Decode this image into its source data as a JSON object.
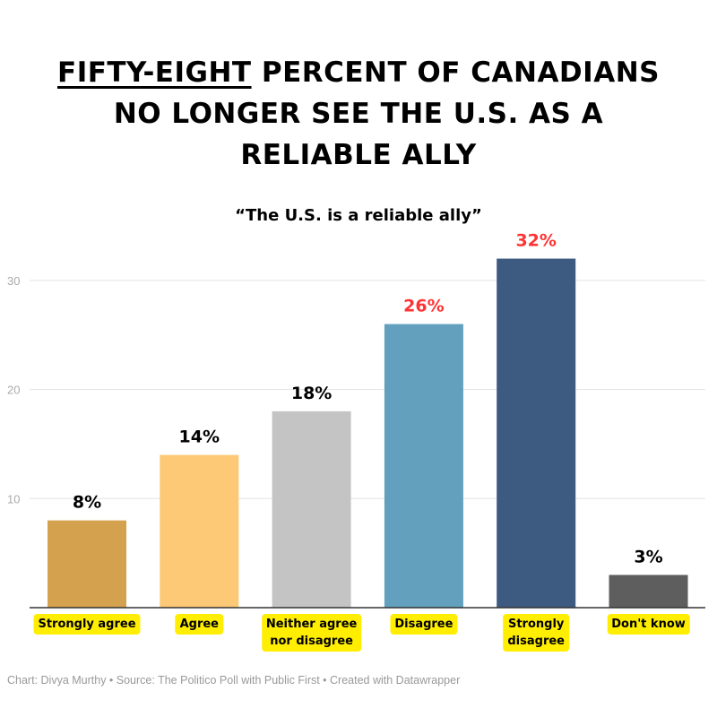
{
  "title": {
    "underlined": "FIFTY-EIGHT",
    "rest_line1": " PERCENT OF CANADIANS",
    "line2": "NO LONGER SEE THE U.S. AS A",
    "line3": "RELIABLE ALLY"
  },
  "footer": "Chart: Divya Murthy • Source: The Politico Poll with Public First • Created with Datawrapper",
  "chart_data": {
    "type": "bar",
    "title": "“The U.S. is a reliable ally”",
    "categories": [
      "Strongly agree",
      "Agree",
      "Neither agree nor disagree",
      "Disagree",
      "Strongly disagree",
      "Don't know"
    ],
    "category_lines": [
      [
        "Strongly agree"
      ],
      [
        "Agree"
      ],
      [
        "Neither agree",
        "nor disagree"
      ],
      [
        "Disagree"
      ],
      [
        "Strongly",
        "disagree"
      ],
      [
        "Don't know"
      ]
    ],
    "values": [
      8,
      14,
      18,
      26,
      32,
      3
    ],
    "data_labels": [
      "8%",
      "14%",
      "18%",
      "26%",
      "32%",
      "3%"
    ],
    "colors": [
      "#d4a24f",
      "#fdc976",
      "#c4c4c4",
      "#62a0bd",
      "#3d5a80",
      "#5e5e5e"
    ],
    "label_colors": [
      "#000000",
      "#000000",
      "#000000",
      "#ff3333",
      "#ff3333",
      "#000000"
    ],
    "y_ticks": [
      10,
      20,
      30
    ],
    "ylim": [
      0,
      33
    ],
    "grid": true,
    "category_label_background": "#ffee00"
  }
}
